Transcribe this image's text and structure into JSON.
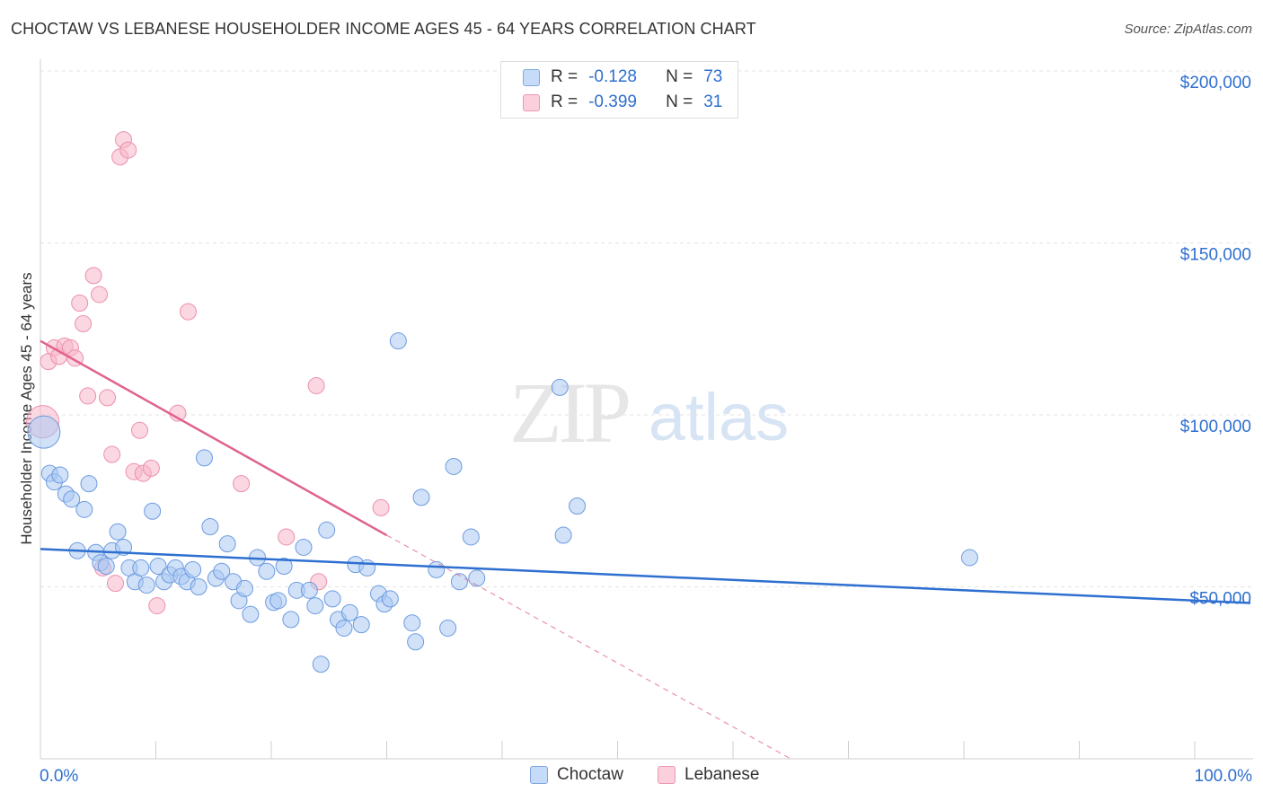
{
  "header": {
    "title": "CHOCTAW VS LEBANESE HOUSEHOLDER INCOME AGES 45 - 64 YEARS CORRELATION CHART",
    "source": "Source: ZipAtlas.com"
  },
  "watermark": {
    "zip": "ZIP",
    "atlas": "atlas"
  },
  "legend": {
    "rows": [
      {
        "r_label": "R =",
        "r_value": "-0.128",
        "n_label": "N =",
        "n_value": "73",
        "color": "#a9c8f2"
      },
      {
        "r_label": "R =",
        "r_value": "-0.399",
        "n_label": "N =",
        "n_value": "31",
        "color": "#f7b7c9"
      }
    ]
  },
  "colors": {
    "choctaw_fill": "#a9c8f2",
    "choctaw_line": "#2e6fd0",
    "lebanese_fill": "#f7b7c9",
    "lebanese_line": "#e0628f",
    "grid": "#e3e3e3",
    "axis_text": "#2e6fd0"
  },
  "chart_data": {
    "type": "scatter",
    "title": "CHOCTAW VS LEBANESE HOUSEHOLDER INCOME AGES 45 - 64 YEARS CORRELATION CHART",
    "xlabel": "",
    "ylabel": "Householder Income Ages 45 - 64 years",
    "xlim": [
      0,
      100
    ],
    "ylim": [
      0,
      200000
    ],
    "x_tick_labels": [
      "0.0%",
      "100.0%"
    ],
    "y_ticks": [
      50000,
      100000,
      150000,
      200000
    ],
    "y_tick_labels": [
      "$50,000",
      "$100,000",
      "$150,000",
      "$200,000"
    ],
    "grid": true,
    "legend_position": "top-center",
    "series": [
      {
        "name": "Choctaw",
        "R": -0.128,
        "N": 73,
        "trend": {
          "x": [
            0,
            100
          ],
          "y": [
            61000,
            45500
          ]
        },
        "points": [
          [
            0.3,
            95000
          ],
          [
            0.8,
            83000
          ],
          [
            1.2,
            80500
          ],
          [
            1.7,
            82500
          ],
          [
            2.2,
            77000
          ],
          [
            2.7,
            75500
          ],
          [
            3.2,
            60500
          ],
          [
            3.8,
            72500
          ],
          [
            4.2,
            80000
          ],
          [
            4.8,
            60000
          ],
          [
            5.2,
            57000
          ],
          [
            5.7,
            56000
          ],
          [
            6.2,
            60500
          ],
          [
            6.7,
            66000
          ],
          [
            7.2,
            61500
          ],
          [
            7.7,
            55500
          ],
          [
            8.2,
            51500
          ],
          [
            8.7,
            55500
          ],
          [
            9.2,
            50500
          ],
          [
            9.7,
            72000
          ],
          [
            10.2,
            56000
          ],
          [
            10.7,
            51500
          ],
          [
            11.2,
            53500
          ],
          [
            11.7,
            55500
          ],
          [
            12.2,
            53000
          ],
          [
            12.7,
            51500
          ],
          [
            13.2,
            55000
          ],
          [
            13.7,
            50000
          ],
          [
            14.2,
            87500
          ],
          [
            14.7,
            67500
          ],
          [
            15.2,
            52500
          ],
          [
            15.7,
            54500
          ],
          [
            16.2,
            62500
          ],
          [
            16.7,
            51500
          ],
          [
            17.2,
            46000
          ],
          [
            17.7,
            49500
          ],
          [
            18.2,
            42000
          ],
          [
            18.8,
            58500
          ],
          [
            19.6,
            54500
          ],
          [
            20.2,
            45500
          ],
          [
            20.6,
            46000
          ],
          [
            21.1,
            56000
          ],
          [
            21.7,
            40500
          ],
          [
            22.2,
            49000
          ],
          [
            22.8,
            61500
          ],
          [
            23.3,
            49000
          ],
          [
            23.8,
            44500
          ],
          [
            24.3,
            27500
          ],
          [
            24.8,
            66500
          ],
          [
            25.3,
            46500
          ],
          [
            25.8,
            40500
          ],
          [
            26.3,
            38000
          ],
          [
            26.8,
            42500
          ],
          [
            27.3,
            56500
          ],
          [
            27.8,
            39000
          ],
          [
            28.3,
            55500
          ],
          [
            29.3,
            48000
          ],
          [
            29.8,
            45000
          ],
          [
            30.3,
            46500
          ],
          [
            31.0,
            121500
          ],
          [
            32.2,
            39500
          ],
          [
            32.5,
            34000
          ],
          [
            33.0,
            76000
          ],
          [
            34.3,
            55000
          ],
          [
            35.3,
            38000
          ],
          [
            35.8,
            85000
          ],
          [
            36.3,
            51500
          ],
          [
            37.3,
            64500
          ],
          [
            37.8,
            52500
          ],
          [
            45.0,
            108000
          ],
          [
            45.3,
            65000
          ],
          [
            46.5,
            73500
          ],
          [
            80.5,
            58500
          ]
        ]
      },
      {
        "name": "Lebanese",
        "R": -0.399,
        "N": 31,
        "trend": {
          "x": [
            0,
            30
          ],
          "y": [
            121500,
            65000
          ]
        },
        "trend_dashed": {
          "x": [
            30,
            65
          ],
          "y": [
            65000,
            0
          ]
        },
        "points": [
          [
            0.2,
            98000
          ],
          [
            0.7,
            115500
          ],
          [
            1.2,
            119500
          ],
          [
            1.6,
            117000
          ],
          [
            2.1,
            120000
          ],
          [
            2.6,
            119500
          ],
          [
            3.0,
            116500
          ],
          [
            3.4,
            132500
          ],
          [
            3.7,
            126500
          ],
          [
            4.1,
            105500
          ],
          [
            4.6,
            140500
          ],
          [
            5.1,
            135000
          ],
          [
            5.4,
            55500
          ],
          [
            5.8,
            105000
          ],
          [
            6.2,
            88500
          ],
          [
            6.5,
            51000
          ],
          [
            6.9,
            175000
          ],
          [
            7.2,
            180000
          ],
          [
            7.6,
            177000
          ],
          [
            8.1,
            83500
          ],
          [
            8.6,
            95500
          ],
          [
            8.9,
            83000
          ],
          [
            9.6,
            84500
          ],
          [
            10.1,
            44500
          ],
          [
            11.9,
            100500
          ],
          [
            12.8,
            130000
          ],
          [
            17.4,
            80000
          ],
          [
            21.3,
            64500
          ],
          [
            23.9,
            108500
          ],
          [
            24.1,
            51500
          ],
          [
            29.5,
            73000
          ]
        ]
      }
    ]
  },
  "bottom_legend": [
    {
      "label": "Choctaw",
      "color": "#a9c8f2"
    },
    {
      "label": "Lebanese",
      "color": "#f7b7c9"
    }
  ]
}
